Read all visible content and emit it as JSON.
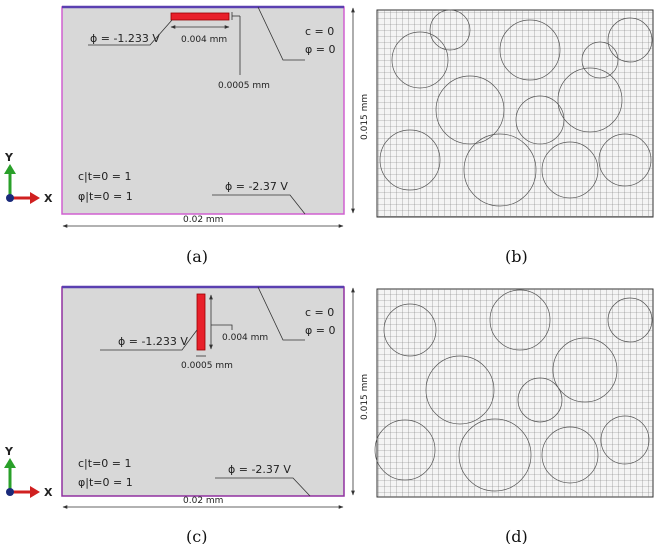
{
  "panels": [
    {
      "caption": "(a)",
      "electrode_potential": "ϕ = -1.233 V",
      "electrode_width": "0.004 mm",
      "electrode_thickness": "0.0005 mm",
      "boundary_c": "c = 0",
      "boundary_phase": "φ = 0",
      "init_c": "c|t=0 = 1",
      "init_phase": "φ|t=0 = 1",
      "bottom_potential": "ϕ = -2.37 V",
      "domain_width": "0.02 mm",
      "domain_height": "0.015 mm"
    },
    {
      "caption": "(c)",
      "electrode_potential": "ϕ = -1.233 V",
      "electrode_width": "0.004 mm",
      "electrode_thickness": "0.0005 mm",
      "boundary_c": "c = 0",
      "boundary_phase": "φ = 0",
      "init_c": "c|t=0 = 1",
      "init_phase": "φ|t=0 = 1",
      "bottom_potential": "ϕ = -2.37 V",
      "domain_width": "0.02 mm",
      "domain_height": "0.015 mm"
    }
  ],
  "mesh_captions": [
    "(b)",
    "(d)"
  ],
  "axes": {
    "y": "Y",
    "x": "X"
  },
  "colors": {
    "domain_fill": "#d8d8d8",
    "top_edge": "#5a3fb0",
    "side_edge": "#d060d0",
    "electrode": "#e8202a",
    "axis_y": "#2aa02a",
    "axis_x": "#d02020"
  }
}
